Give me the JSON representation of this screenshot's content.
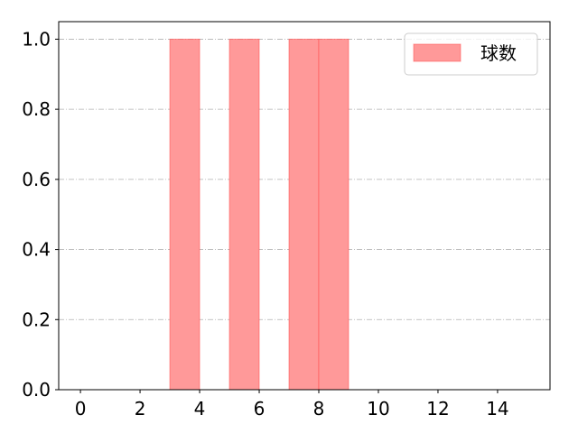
{
  "chart_data": {
    "type": "bar",
    "title": "",
    "xlabel": "",
    "ylabel": "",
    "bins": [
      [
        3,
        4
      ],
      [
        5,
        6
      ],
      [
        7,
        8
      ],
      [
        8,
        9
      ]
    ],
    "values": [
      1,
      1,
      1,
      1
    ],
    "xlim": [
      -0.73,
      15.76
    ],
    "ylim": [
      0,
      1.05
    ],
    "xticks": [
      0,
      2,
      4,
      6,
      8,
      10,
      12,
      14
    ],
    "yticks": [
      "0.0",
      "0.2",
      "0.4",
      "0.6",
      "0.8",
      "1.0"
    ],
    "grid": "y dash-dot",
    "legend": {
      "placement": "top-right",
      "entries": [
        "球数"
      ]
    },
    "colors": {
      "fill": "#ff9999",
      "edge": "#ff4444",
      "grid": "#b0b0b0"
    }
  }
}
